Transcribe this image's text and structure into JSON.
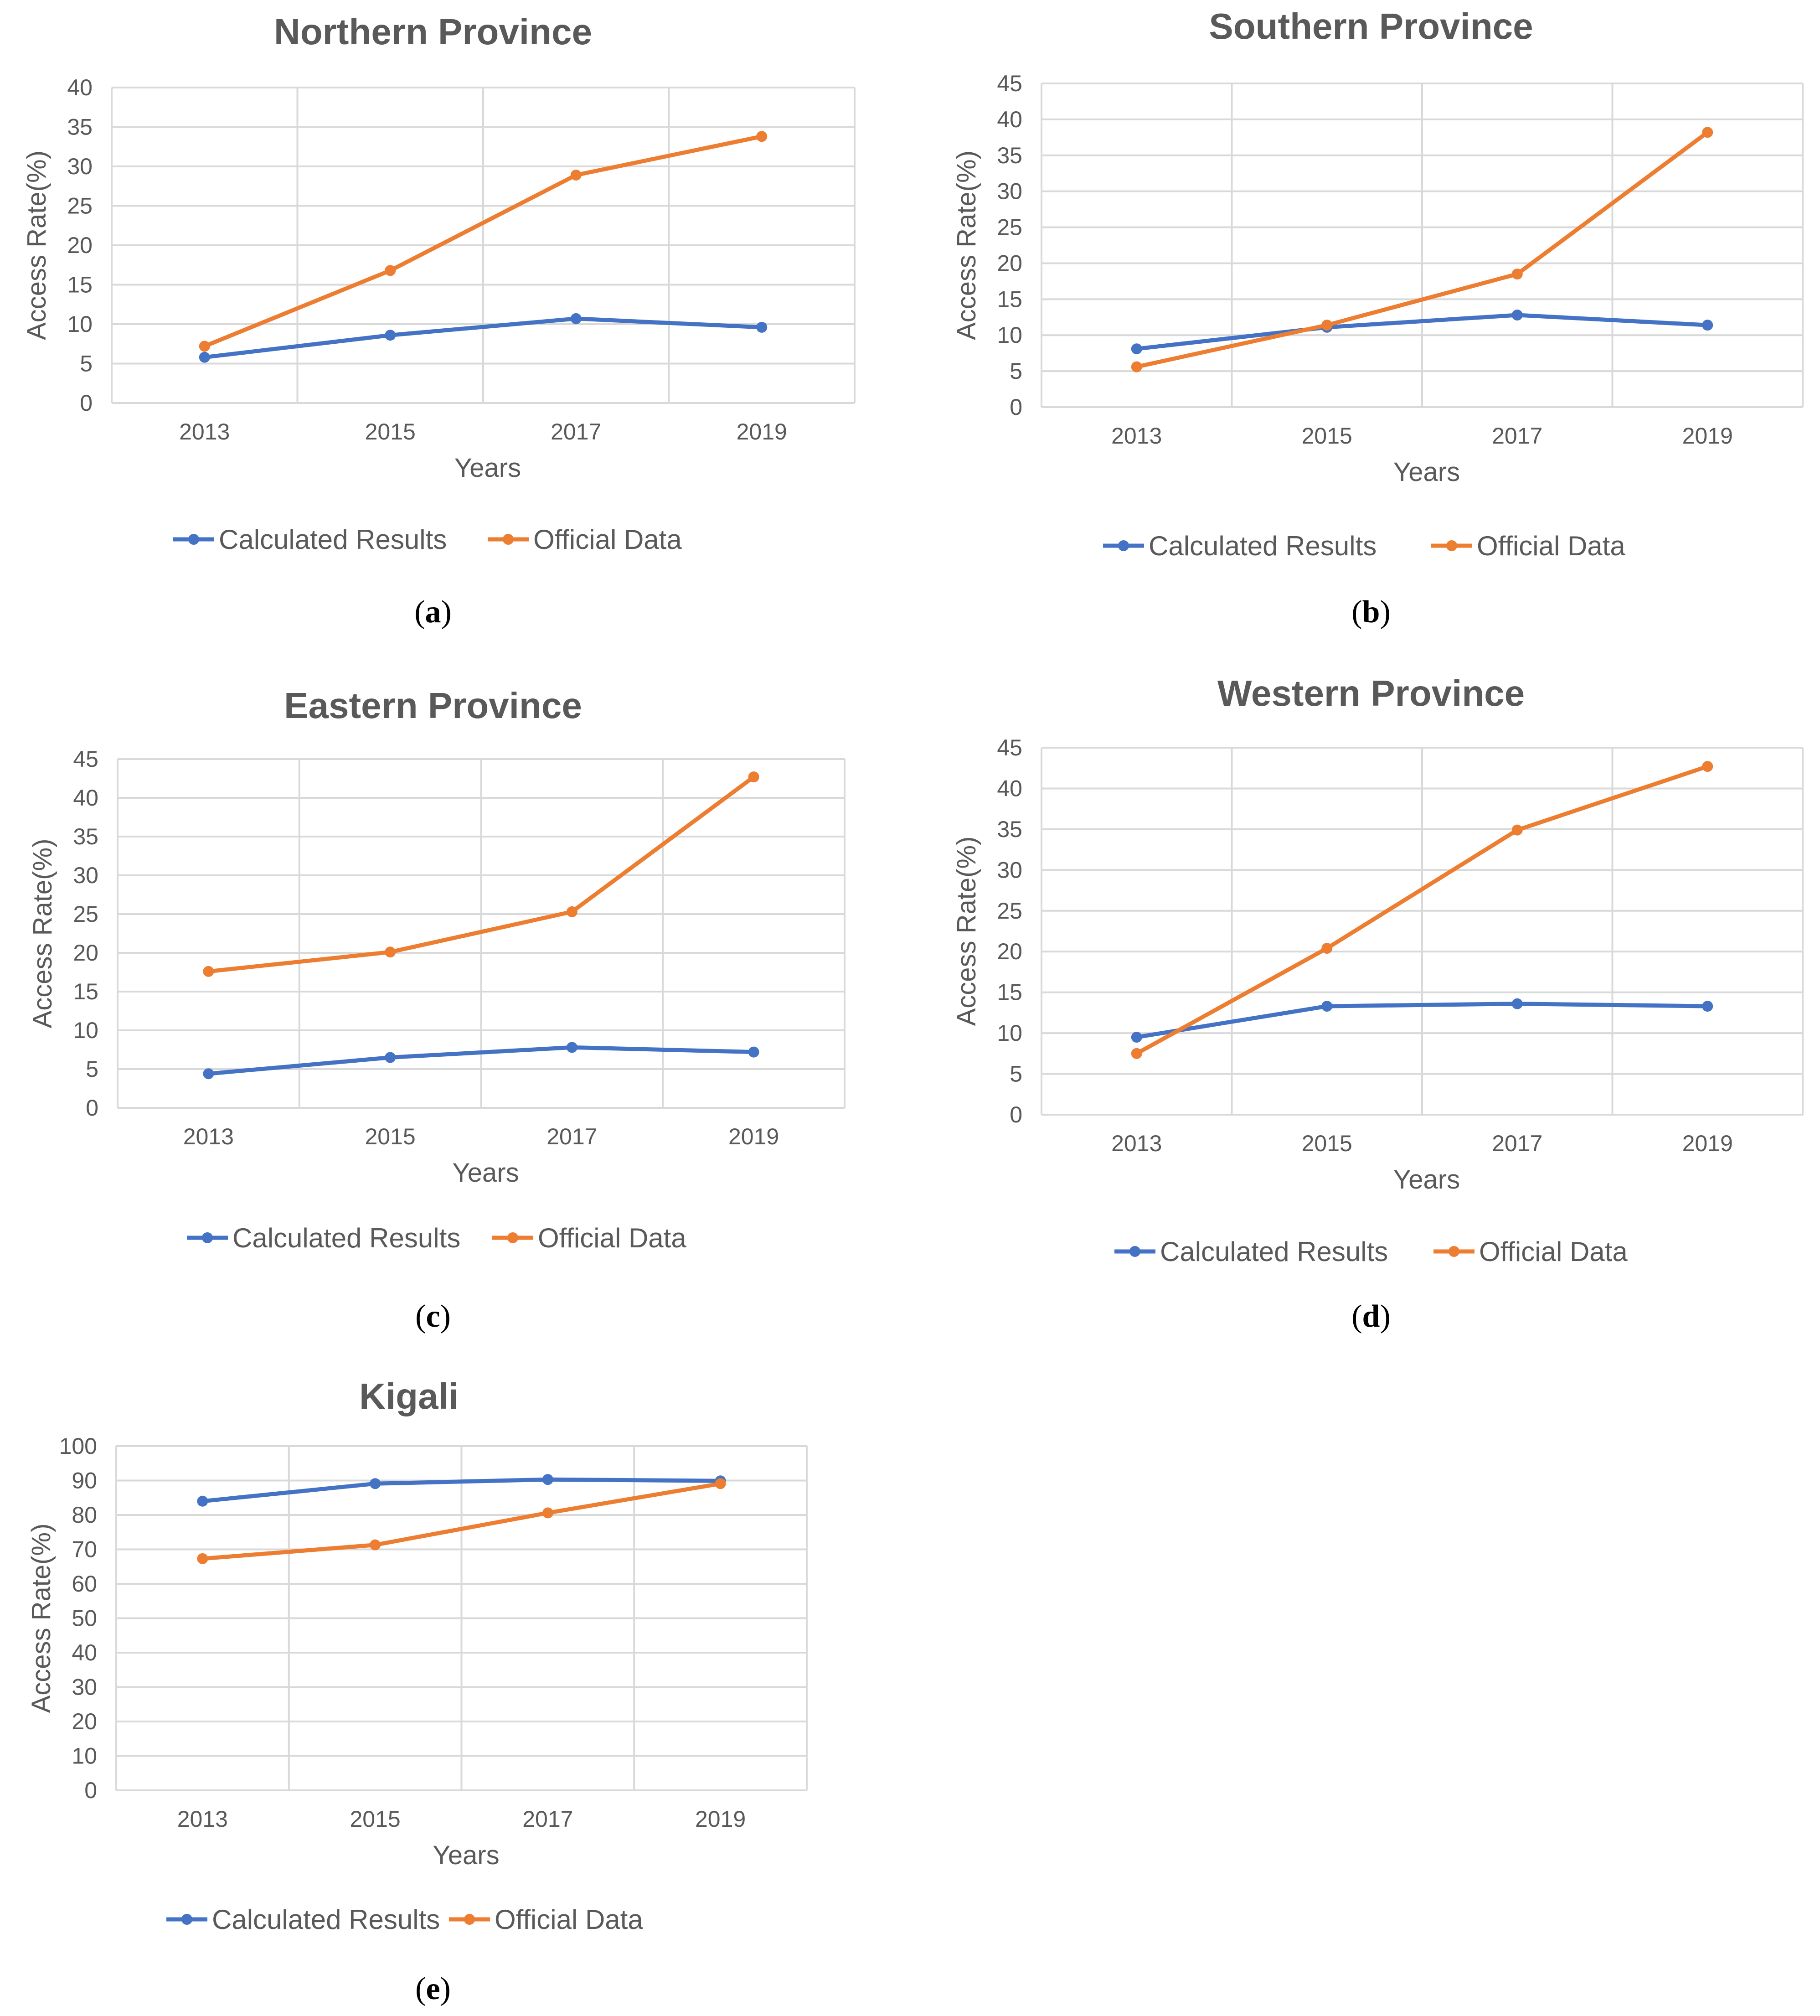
{
  "colors": {
    "calculated": "#4472c4",
    "official": "#ed7d31",
    "grid": "#d9d9d9",
    "text": "#595959"
  },
  "chart_data": [
    {
      "type": "line",
      "title": "Northern Province",
      "panel_label": "a",
      "xlabel": "Years",
      "ylabel": "Access Rate(%)",
      "categories": [
        "2013",
        "2015",
        "2017",
        "2019"
      ],
      "yticks": [
        "0",
        "5",
        "10",
        "15",
        "20",
        "25",
        "30",
        "35",
        "40"
      ],
      "ylim": [
        0,
        40
      ],
      "series": [
        {
          "name": "Calculated Results",
          "values": [
            5.8,
            8.6,
            10.7,
            9.6
          ]
        },
        {
          "name": "Official Data",
          "values": [
            7.2,
            16.8,
            28.9,
            33.8
          ]
        }
      ]
    },
    {
      "type": "line",
      "title": "Southern Province",
      "panel_label": "b",
      "xlabel": "Years",
      "ylabel": "Access Rate(%)",
      "categories": [
        "2013",
        "2015",
        "2017",
        "2019"
      ],
      "yticks": [
        "0",
        "5",
        "10",
        "15",
        "20",
        "25",
        "30",
        "35",
        "40",
        "45"
      ],
      "ylim": [
        0,
        45
      ],
      "series": [
        {
          "name": "Calculated Results",
          "values": [
            8.1,
            11.1,
            12.8,
            11.4
          ]
        },
        {
          "name": "Official Data",
          "values": [
            5.6,
            11.4,
            18.5,
            38.2
          ]
        }
      ]
    },
    {
      "type": "line",
      "title": "Eastern Province",
      "panel_label": "c",
      "xlabel": "Years",
      "ylabel": "Access Rate(%)",
      "categories": [
        "2013",
        "2015",
        "2017",
        "2019"
      ],
      "yticks": [
        "0",
        "5",
        "10",
        "15",
        "20",
        "25",
        "30",
        "35",
        "40",
        "45"
      ],
      "ylim": [
        0,
        45
      ],
      "series": [
        {
          "name": "Calculated Results",
          "values": [
            4.4,
            6.5,
            7.8,
            7.2
          ]
        },
        {
          "name": "Official Data",
          "values": [
            17.6,
            20.1,
            25.3,
            42.7
          ]
        }
      ]
    },
    {
      "type": "line",
      "title": "Western Province",
      "panel_label": "d",
      "xlabel": "Years",
      "ylabel": "Access Rate(%)",
      "categories": [
        "2013",
        "2015",
        "2017",
        "2019"
      ],
      "yticks": [
        "0",
        "5",
        "10",
        "15",
        "20",
        "25",
        "30",
        "35",
        "40",
        "45"
      ],
      "ylim": [
        0,
        45
      ],
      "series": [
        {
          "name": "Calculated Results",
          "values": [
            9.5,
            13.3,
            13.6,
            13.3
          ]
        },
        {
          "name": "Official Data",
          "values": [
            7.5,
            20.4,
            34.9,
            42.7
          ]
        }
      ]
    },
    {
      "type": "line",
      "title": "Kigali",
      "panel_label": "e",
      "xlabel": "Years",
      "ylabel": "Access Rate(%)",
      "categories": [
        "2013",
        "2015",
        "2017",
        "2019"
      ],
      "yticks": [
        "0",
        "10",
        "20",
        "30",
        "40",
        "50",
        "60",
        "70",
        "80",
        "90",
        "100"
      ],
      "ylim": [
        0,
        100
      ],
      "series": [
        {
          "name": "Calculated Results",
          "values": [
            84.0,
            89.1,
            90.3,
            89.9
          ]
        },
        {
          "name": "Official Data",
          "values": [
            67.3,
            71.3,
            80.6,
            89.1
          ]
        }
      ]
    }
  ]
}
